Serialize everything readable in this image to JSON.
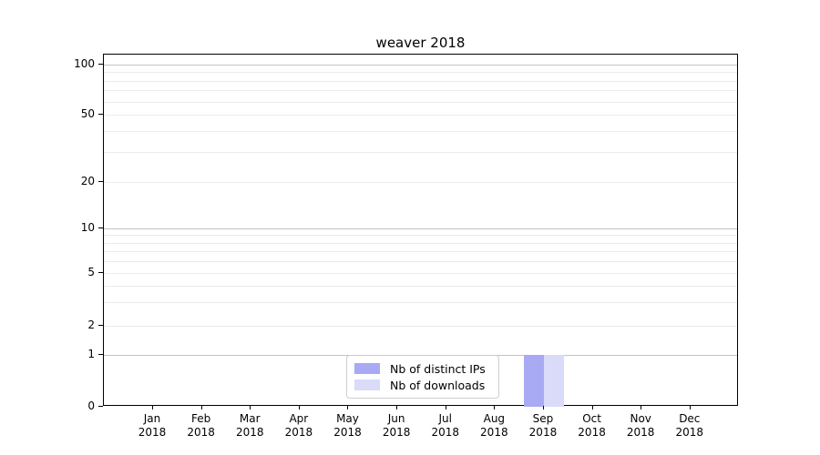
{
  "chart_data": {
    "type": "bar",
    "title": "weaver 2018",
    "categories": [
      {
        "month": "Jan",
        "year": "2018"
      },
      {
        "month": "Feb",
        "year": "2018"
      },
      {
        "month": "Mar",
        "year": "2018"
      },
      {
        "month": "Apr",
        "year": "2018"
      },
      {
        "month": "May",
        "year": "2018"
      },
      {
        "month": "Jun",
        "year": "2018"
      },
      {
        "month": "Jul",
        "year": "2018"
      },
      {
        "month": "Aug",
        "year": "2018"
      },
      {
        "month": "Sep",
        "year": "2018"
      },
      {
        "month": "Oct",
        "year": "2018"
      },
      {
        "month": "Nov",
        "year": "2018"
      },
      {
        "month": "Dec",
        "year": "2018"
      }
    ],
    "series": [
      {
        "name": "Nb of distinct IPs",
        "color": "#a8aaf3",
        "values": [
          0,
          0,
          0,
          0,
          0,
          0,
          0,
          0,
          1,
          0,
          0,
          0
        ]
      },
      {
        "name": "Nb of downloads",
        "color": "#d9dbf9",
        "values": [
          0,
          0,
          0,
          0,
          0,
          0,
          0,
          0,
          1,
          0,
          0,
          0
        ]
      }
    ],
    "yticks": [
      0,
      1,
      2,
      5,
      10,
      20,
      50,
      100
    ],
    "ylim": [
      0,
      115
    ],
    "yscale": "symlog",
    "xlabel": "",
    "ylabel": "",
    "grid": "horizontal",
    "legend_position": "lower center"
  }
}
